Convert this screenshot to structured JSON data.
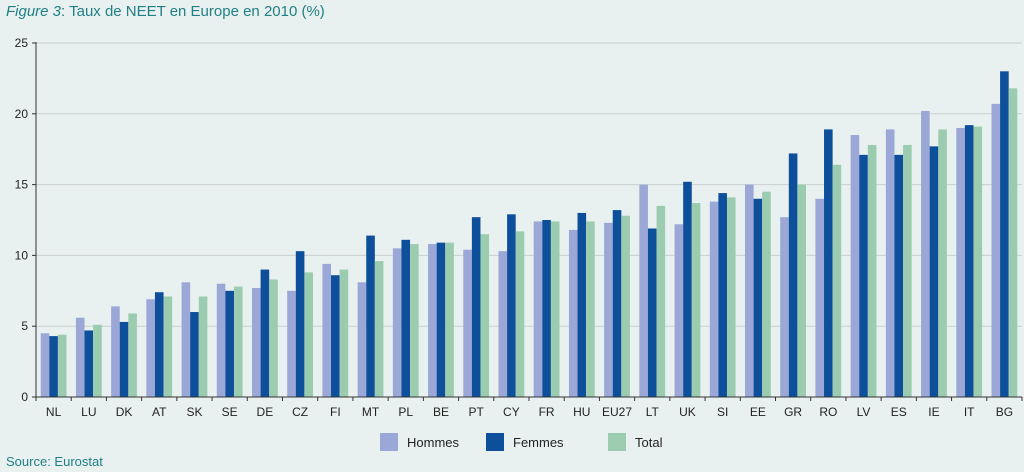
{
  "header": {
    "figure_label": "Figure 3",
    "title_rest": ": Taux de NEET en Europe en 2010 (%)"
  },
  "source": "Source: Eurostat",
  "colors": {
    "hommes": "#9ba7d6",
    "femmes": "#0d4f9a",
    "total": "#9cccb0",
    "grid": "#c9cfcf",
    "axis": "#333333"
  },
  "chart_data": {
    "type": "bar",
    "title": "Taux de NEET en Europe en 2010 (%)",
    "xlabel": "",
    "ylabel": "",
    "ylim": [
      0,
      25
    ],
    "yticks": [
      0,
      5,
      10,
      15,
      20,
      25
    ],
    "grid": true,
    "legend": "bottom",
    "categories": [
      "NL",
      "LU",
      "DK",
      "AT",
      "SK",
      "SE",
      "DE",
      "CZ",
      "FI",
      "MT",
      "PL",
      "BE",
      "PT",
      "CY",
      "FR",
      "HU",
      "EU27",
      "LT",
      "UK",
      "SI",
      "EE",
      "GR",
      "RO",
      "LV",
      "ES",
      "IE",
      "IT",
      "BG"
    ],
    "series": [
      {
        "name": "Hommes",
        "values": [
          4.5,
          5.6,
          6.4,
          6.9,
          8.1,
          8.0,
          7.7,
          7.5,
          9.4,
          8.1,
          10.5,
          10.8,
          10.4,
          10.3,
          12.4,
          11.8,
          12.3,
          15.0,
          12.2,
          13.8,
          15.0,
          12.7,
          14.0,
          18.5,
          18.9,
          20.2,
          19.0,
          20.7
        ]
      },
      {
        "name": "Femmes",
        "values": [
          4.3,
          4.7,
          5.3,
          7.4,
          6.0,
          7.5,
          9.0,
          10.3,
          8.6,
          11.4,
          11.1,
          10.9,
          12.7,
          12.9,
          12.5,
          13.0,
          13.2,
          11.9,
          15.2,
          14.4,
          14.0,
          17.2,
          18.9,
          17.1,
          17.1,
          17.7,
          19.2,
          23.0
        ]
      },
      {
        "name": "Total",
        "values": [
          4.4,
          5.1,
          5.9,
          7.1,
          7.1,
          7.8,
          8.3,
          8.8,
          9.0,
          9.6,
          10.8,
          10.9,
          11.5,
          11.7,
          12.4,
          12.4,
          12.8,
          13.5,
          13.7,
          14.1,
          14.5,
          15.0,
          16.4,
          17.8,
          17.8,
          18.9,
          19.1,
          21.8
        ]
      }
    ]
  }
}
